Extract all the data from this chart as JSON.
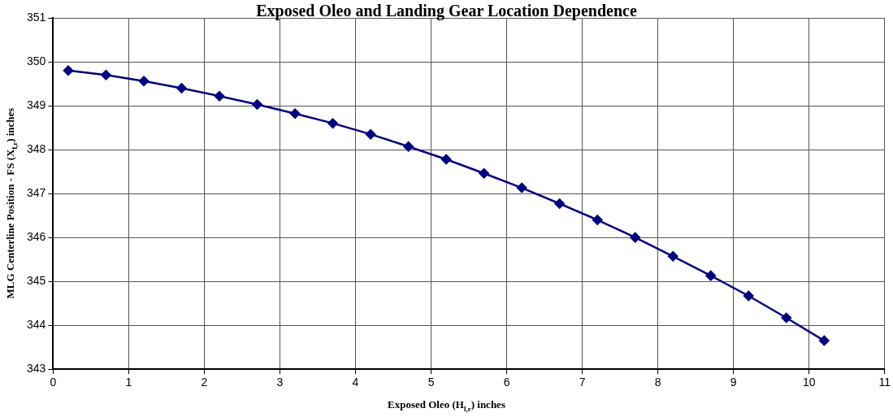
{
  "chart_data": {
    "type": "line",
    "title": "Exposed Oleo and Landing Gear Location Dependence",
    "xlabel": "Exposed Oleo (H$_{l,r}$) inches",
    "ylabel": "MLG Centerline Position - FS (X$_{l,r}$) inches",
    "x": [
      0.2,
      0.7,
      1.2,
      1.7,
      2.2,
      2.7,
      3.2,
      3.7,
      4.2,
      4.7,
      5.2,
      5.7,
      6.2,
      6.7,
      7.2,
      7.7,
      8.2,
      8.7,
      9.2,
      9.7,
      10.2
    ],
    "series": [
      {
        "color": "#000080",
        "values": [
          349.8,
          349.7,
          349.56,
          349.4,
          349.22,
          349.03,
          348.82,
          348.6,
          348.35,
          348.07,
          347.78,
          347.46,
          347.13,
          346.77,
          346.4,
          346.0,
          345.57,
          345.13,
          344.67,
          344.17,
          343.65
        ]
      }
    ],
    "xlim": [
      0,
      11
    ],
    "xticks": [
      0,
      1,
      2,
      3,
      4,
      5,
      6,
      7,
      8,
      9,
      10,
      11
    ],
    "ylim": [
      343,
      351
    ],
    "yticks": [
      343,
      344,
      345,
      346,
      347,
      348,
      349,
      350,
      351
    ],
    "grid": true,
    "legend": false,
    "marker": "diamond",
    "line_style": "solid"
  }
}
